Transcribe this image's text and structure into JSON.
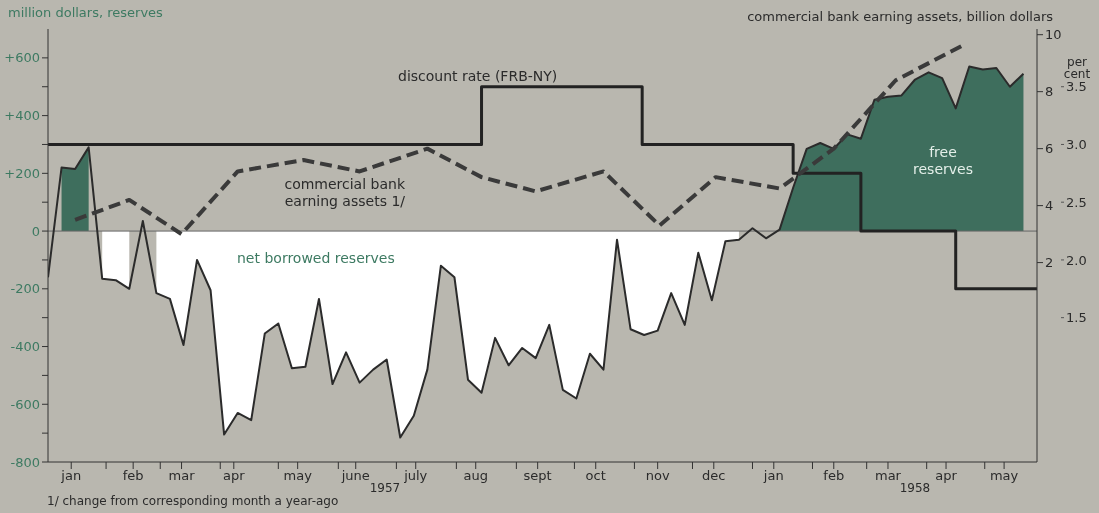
{
  "chart_data": {
    "type": "area",
    "ylabel": "million dollars, reserves",
    "y2label": "commercial bank earning assets, billion dollars",
    "y3label": "per cent",
    "annotations": [
      "1957",
      "1958",
      "1/ change from corresponding month a year-ago"
    ],
    "x": [
      "1957-01-02",
      "1957-01-09",
      "1957-01-16",
      "1957-01-23",
      "1957-01-30",
      "1957-02-06",
      "1957-02-13",
      "1957-02-20",
      "1957-02-27",
      "1957-03-06",
      "1957-03-13",
      "1957-03-20",
      "1957-03-27",
      "1957-04-03",
      "1957-04-10",
      "1957-04-17",
      "1957-04-24",
      "1957-05-01",
      "1957-05-08",
      "1957-05-15",
      "1957-05-22",
      "1957-05-29",
      "1957-06-05",
      "1957-06-12",
      "1957-06-19",
      "1957-06-26",
      "1957-07-03",
      "1957-07-10",
      "1957-07-17",
      "1957-07-24",
      "1957-07-31",
      "1957-08-07",
      "1957-08-14",
      "1957-08-21",
      "1957-08-28",
      "1957-09-04",
      "1957-09-11",
      "1957-09-18",
      "1957-09-25",
      "1957-10-02",
      "1957-10-09",
      "1957-10-16",
      "1957-10-23",
      "1957-10-30",
      "1957-11-06",
      "1957-11-13",
      "1957-11-20",
      "1957-11-27",
      "1957-12-04",
      "1957-12-11",
      "1957-12-18",
      "1957-12-25",
      "1958-01-01",
      "1958-01-08",
      "1958-01-15",
      "1958-01-22",
      "1958-01-29",
      "1958-02-05",
      "1958-02-12",
      "1958-02-19",
      "1958-02-26",
      "1958-03-05",
      "1958-03-12",
      "1958-03-19",
      "1958-03-26",
      "1958-04-02",
      "1958-04-09",
      "1958-04-16",
      "1958-04-23",
      "1958-04-30",
      "1958-05-07",
      "1958-05-14",
      "1958-05-21"
    ],
    "series": [
      {
        "name": "free reserves",
        "color": "#3e6e5d",
        "values": [
          null,
          220,
          215,
          290,
          null,
          null,
          null,
          null,
          null,
          null,
          null,
          null,
          null,
          null,
          null,
          null,
          null,
          null,
          null,
          null,
          null,
          null,
          null,
          null,
          null,
          null,
          null,
          null,
          null,
          null,
          null,
          null,
          null,
          null,
          null,
          null,
          null,
          null,
          null,
          null,
          null,
          null,
          null,
          null,
          null,
          null,
          null,
          null,
          null,
          null,
          null,
          null,
          null,
          null,
          5,
          150,
          285,
          305,
          285,
          335,
          320,
          455,
          465,
          470,
          525,
          550,
          530,
          425,
          570,
          560,
          565,
          500,
          545
        ]
      },
      {
        "name": "net borrowed reserves",
        "color": "#ffffff",
        "values": [
          null,
          null,
          null,
          null,
          -165,
          -170,
          -200,
          null,
          -215,
          -235,
          -395,
          -100,
          -205,
          -705,
          -630,
          -655,
          -355,
          -320,
          -475,
          -470,
          -235,
          -530,
          -420,
          -525,
          -480,
          -445,
          -715,
          -640,
          -480,
          -120,
          -160,
          -515,
          -560,
          -370,
          -465,
          -405,
          -440,
          -325,
          -550,
          -580,
          -425,
          -480,
          -30,
          -340,
          -360,
          -345,
          -215,
          -325,
          -75,
          -240,
          -35,
          -30,
          null,
          null,
          null,
          null,
          null,
          null,
          null,
          null,
          null,
          null,
          null,
          null,
          null,
          null,
          null,
          null,
          null,
          null,
          null,
          null,
          null
        ]
      },
      {
        "type": "line",
        "color": "#2b2b2b",
        "values": [
          -160,
          220,
          215,
          290,
          -165,
          -170,
          -200,
          35,
          -215,
          -235,
          -395,
          -100,
          -205,
          -705,
          -630,
          -655,
          -355,
          -320,
          -475,
          -470,
          -235,
          -530,
          -420,
          -525,
          -480,
          -445,
          -715,
          -640,
          -480,
          -120,
          -160,
          -515,
          -560,
          -370,
          -465,
          -405,
          -440,
          -325,
          -550,
          -580,
          -425,
          -480,
          -30,
          -340,
          -360,
          -345,
          -215,
          -325,
          -75,
          -240,
          -35,
          -30,
          10,
          -25,
          5,
          150,
          285,
          305,
          285,
          335,
          320,
          455,
          465,
          470,
          525,
          550,
          530,
          425,
          570,
          560,
          565,
          500,
          545
        ]
      },
      {
        "type": "step",
        "name": "discount rate (FRB-NY)",
        "color": "#222222",
        "axis": "y3",
        "x": [
          "1957-01-02",
          "1957-08-14",
          "1957-11-05",
          "1958-01-22",
          "1958-02-26",
          "1958-04-16",
          "1958-05-28"
        ],
        "values": [
          3.0,
          3.5,
          3.0,
          2.75,
          2.25,
          1.75,
          1.75
        ]
      },
      {
        "type": "line",
        "name": "commercial bank earning assets 1/",
        "color": "#3a3a3a",
        "axis": "y2",
        "line_style": "dashed",
        "x": [
          "1957-01-16",
          "1957-02-13",
          "1957-03-12",
          "1957-04-10",
          "1957-05-14",
          "1957-06-12",
          "1957-07-17",
          "1957-08-14",
          "1957-09-11",
          "1957-10-16",
          "1957-11-14",
          "1957-12-13",
          "1958-01-15",
          "1958-02-12",
          "1958-03-16",
          "1958-04-19"
        ],
        "values": [
          3.5,
          4.2,
          3.0,
          5.2,
          5.6,
          5.2,
          6.0,
          5.0,
          4.5,
          5.2,
          3.3,
          5.0,
          4.6,
          6.0,
          8.4,
          9.6
        ]
      }
    ],
    "xlim": [
      "1957-01-02",
      "1958-05-28"
    ],
    "xticks": [
      {
        "value": "1957-01-14",
        "label": "jan"
      },
      {
        "value": "1957-02-01",
        "label": null
      },
      {
        "value": "1957-02-15",
        "label": "feb"
      },
      {
        "value": "1957-03-01",
        "label": null
      },
      {
        "value": "1957-03-12",
        "label": "mar"
      },
      {
        "value": "1957-04-01",
        "label": null
      },
      {
        "value": "1957-04-08",
        "label": "apr"
      },
      {
        "value": "1957-05-01",
        "label": null
      },
      {
        "value": "1957-05-11",
        "label": "may"
      },
      {
        "value": "1957-06-01",
        "label": null
      },
      {
        "value": "1957-06-10",
        "label": "june"
      },
      {
        "value": "1957-07-01",
        "label": null
      },
      {
        "value": "1957-07-11",
        "label": "july"
      },
      {
        "value": "1957-08-01",
        "label": null
      },
      {
        "value": "1957-08-11",
        "label": "aug"
      },
      {
        "value": "1957-09-01",
        "label": null
      },
      {
        "value": "1957-09-12",
        "label": "sept"
      },
      {
        "value": "1957-10-01",
        "label": null
      },
      {
        "value": "1957-10-12",
        "label": "oct"
      },
      {
        "value": "1957-11-01",
        "label": null
      },
      {
        "value": "1957-11-13",
        "label": "nov"
      },
      {
        "value": "1957-12-01",
        "label": null
      },
      {
        "value": "1957-12-12",
        "label": "dec"
      },
      {
        "value": "1958-01-01",
        "label": null
      },
      {
        "value": "1958-01-12",
        "label": "jan"
      },
      {
        "value": "1958-02-01",
        "label": null
      },
      {
        "value": "1958-02-12",
        "label": "feb"
      },
      {
        "value": "1958-03-01",
        "label": null
      },
      {
        "value": "1958-03-12",
        "label": "mar"
      },
      {
        "value": "1958-04-01",
        "label": null
      },
      {
        "value": "1958-04-11",
        "label": "apr"
      },
      {
        "value": "1958-05-01",
        "label": null
      },
      {
        "value": "1958-05-11",
        "label": "may"
      }
    ],
    "ylim": [
      -800,
      700
    ],
    "yticks": [
      -800,
      {
        "value": -700,
        "label": null
      },
      -600,
      {
        "value": -500,
        "label": null
      },
      -400,
      {
        "value": -300,
        "label": null
      },
      -200,
      {
        "value": -100,
        "label": null
      },
      0,
      {
        "value": 100,
        "label": null
      },
      {
        "value": 200,
        "label": "+200"
      },
      {
        "value": 300,
        "label": null
      },
      {
        "value": 400,
        "label": "+400"
      },
      {
        "value": 500,
        "label": null
      },
      {
        "value": 600,
        "label": "+600"
      }
    ],
    "y2lim": [
      -5,
      10.2
    ],
    "y2ticks": [
      2,
      4,
      6,
      8,
      10
    ],
    "y3lim": [
      0.25,
      4.0
    ],
    "y3ticks": [
      1.5,
      {
        "value": 2.0,
        "label": "2.0"
      },
      2.5,
      {
        "value": 3.0,
        "label": "3.0"
      },
      3.5
    ],
    "ref_lines": [
      {
        "axis": "y",
        "value": 0,
        "color": "#666666"
      }
    ],
    "legend": false
  }
}
